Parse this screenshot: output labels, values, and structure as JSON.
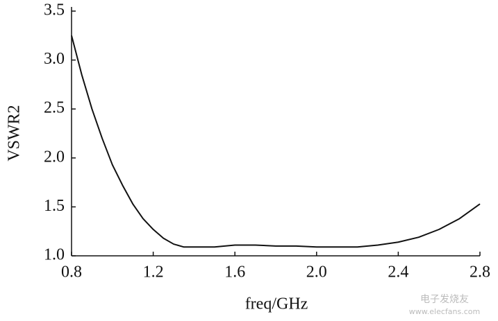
{
  "chart_data": {
    "type": "line",
    "x_label": "freq/GHz",
    "y_label": "VSWR2",
    "watermark": "电子发烧友",
    "watermark_url": "www.elecfans.com",
    "x": [
      0.8,
      0.85,
      0.9,
      0.95,
      1.0,
      1.05,
      1.1,
      1.15,
      1.2,
      1.25,
      1.3,
      1.35,
      1.4,
      1.5,
      1.6,
      1.7,
      1.8,
      1.9,
      2.0,
      2.1,
      2.2,
      2.3,
      2.4,
      2.5,
      2.6,
      2.7,
      2.8
    ],
    "series": [
      {
        "name": "VSWR2",
        "color": "#111111",
        "values": [
          3.25,
          2.85,
          2.5,
          2.2,
          1.93,
          1.72,
          1.53,
          1.38,
          1.27,
          1.18,
          1.12,
          1.09,
          1.09,
          1.09,
          1.11,
          1.11,
          1.1,
          1.1,
          1.09,
          1.09,
          1.09,
          1.11,
          1.14,
          1.19,
          1.27,
          1.38,
          1.53
        ]
      }
    ],
    "xlim": [
      0.8,
      2.8
    ],
    "xticks": [
      0.8,
      1.2,
      1.6,
      {
        "value": 2,
        "label": "2.0"
      },
      2.4,
      2.8
    ],
    "ylim": [
      1,
      3.5
    ],
    "yticks": [
      {
        "value": 1,
        "label": "1.0"
      },
      1.5,
      {
        "value": 2,
        "label": "2.0"
      },
      2.5,
      {
        "value": 3,
        "label": "3.0"
      },
      3.5
    ],
    "grid": false
  }
}
